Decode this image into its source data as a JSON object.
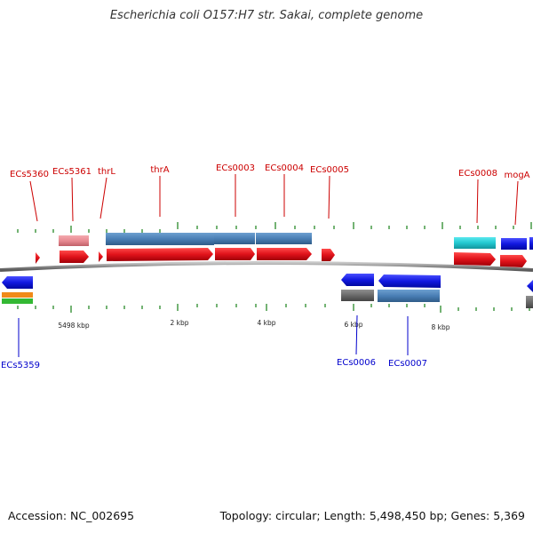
{
  "title": "Escherichia coli O157:H7 str. Sakai, complete genome",
  "footer": {
    "accession": "Accession: NC_002695",
    "summary": "Topology: circular; Length: 5,498,450 bp; Genes: 5,369"
  },
  "colors": {
    "forward_label": "#cc0000",
    "reverse_label": "#0000cc",
    "gene_red": "#e0121a",
    "gene_blue": "#1118e0",
    "cds_steelblue": "#4a7fb5",
    "cds_pink": "#e88a92",
    "cds_cyan": "#22c8d0",
    "cds_gray": "#6a6a6a",
    "cds_orange": "#f08a18",
    "cds_green": "#33b833",
    "tick_green": "#2a8a2a",
    "backbone": "#888888"
  },
  "tick_labels": [
    "5498 kbp",
    "2 kbp",
    "4 kbp",
    "6 kbp",
    "8 kbp"
  ],
  "forward_labels": [
    "ECs5360",
    "ECs5361",
    "thrL",
    "thrA",
    "ECs0003",
    "ECs0004",
    "ECs0005",
    "ECs0008",
    "mogA"
  ],
  "reverse_labels": [
    "ECs5359",
    "ECs0006",
    "ECs0007"
  ]
}
